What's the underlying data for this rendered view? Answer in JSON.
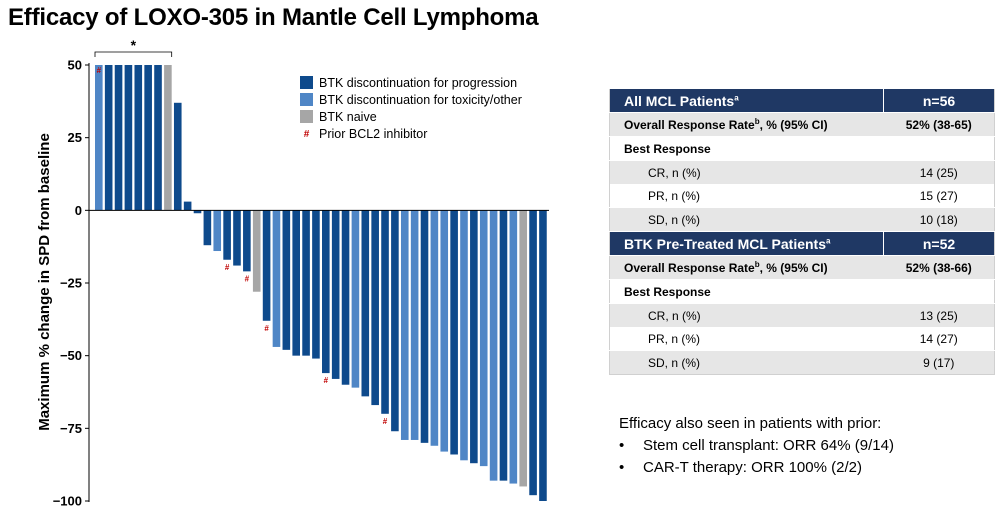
{
  "slide_title": "Efficacy of LOXO-305 in Mantle Cell Lymphoma",
  "colors": {
    "btk_progression": "#0e4a8c",
    "btk_toxicity": "#4f86c6",
    "btk_naive": "#a6a6a6",
    "bcl2_marker": "#c00000",
    "table_header": "#1f3864",
    "table_shade": "#e6e6e6"
  },
  "chart_data": {
    "type": "bar",
    "ylabel": "Maximum % change in SPD from baseline",
    "ylim": [
      -100,
      50
    ],
    "yticks": [
      50,
      25,
      0,
      -25,
      -50,
      -75,
      -100
    ],
    "grid": false,
    "legend_position": "top-right",
    "bracket_annotation": "*",
    "bcl2_marker_symbol": "#",
    "legend": [
      {
        "name": "BTK discontinuation for progression",
        "key": "P",
        "type": "box"
      },
      {
        "name": "BTK discontinuation for toxicity/other",
        "key": "T",
        "type": "box"
      },
      {
        "name": "BTK naive",
        "key": "N",
        "type": "box"
      },
      {
        "name": "Prior BCL2 inhibitor",
        "key": "#",
        "type": "marker"
      }
    ],
    "values": [
      50,
      50,
      50,
      50,
      50,
      50,
      50,
      50,
      37,
      3,
      -1,
      -12,
      -14,
      -17,
      -19,
      -21,
      -28,
      -38,
      -47,
      -48,
      -50,
      -50,
      -51,
      -56,
      -58,
      -60,
      -61,
      -64,
      -67,
      -70,
      -76,
      -79,
      -79,
      -80,
      -81,
      -83,
      -84,
      -86,
      -87,
      -88,
      -93,
      -93,
      -94,
      -95,
      -98,
      -100
    ],
    "groups": [
      "T",
      "P",
      "P",
      "P",
      "P",
      "P",
      "P",
      "N",
      "P",
      "P",
      "P",
      "P",
      "T",
      "P",
      "P",
      "P",
      "N",
      "P",
      "T",
      "P",
      "P",
      "P",
      "P",
      "P",
      "P",
      "P",
      "T",
      "P",
      "P",
      "P",
      "P",
      "T",
      "T",
      "P",
      "T",
      "T",
      "P",
      "T",
      "P",
      "T",
      "T",
      "P",
      "T",
      "N",
      "P",
      "P"
    ],
    "prior_bcl2": [
      0,
      13,
      15,
      17,
      23,
      29
    ]
  },
  "table": {
    "sections": [
      {
        "header_label": "All MCL Patients",
        "header_sup": "a",
        "header_n": "n=56",
        "orr_label": "Overall Response Rate",
        "orr_sup": "b",
        "orr_suffix": ", % (95% CI)",
        "orr_value": "52% (38-65)",
        "best_label": "Best Response",
        "rows": [
          {
            "label": "CR, n (%)",
            "value": "14 (25)"
          },
          {
            "label": "PR, n (%)",
            "value": "15 (27)"
          },
          {
            "label": "SD, n (%)",
            "value": "10 (18)"
          }
        ]
      },
      {
        "header_label": "BTK Pre-Treated MCL Patients",
        "header_sup": "a",
        "header_n": "n=52",
        "orr_label": "Overall Response Rate",
        "orr_sup": "b",
        "orr_suffix": ", % (95% CI)",
        "orr_value": "52% (38-66)",
        "best_label": "Best Response",
        "rows": [
          {
            "label": "CR, n (%)",
            "value": "13 (25)"
          },
          {
            "label": "PR, n (%)",
            "value": "14 (27)"
          },
          {
            "label": "SD, n (%)",
            "value": "9 (17)"
          }
        ]
      }
    ]
  },
  "notes": {
    "intro": "Efficacy also seen in patients with prior:",
    "bullets": [
      "Stem cell transplant: ORR 64% (9/14)",
      "CAR-T therapy: ORR 100% (2/2)"
    ]
  }
}
